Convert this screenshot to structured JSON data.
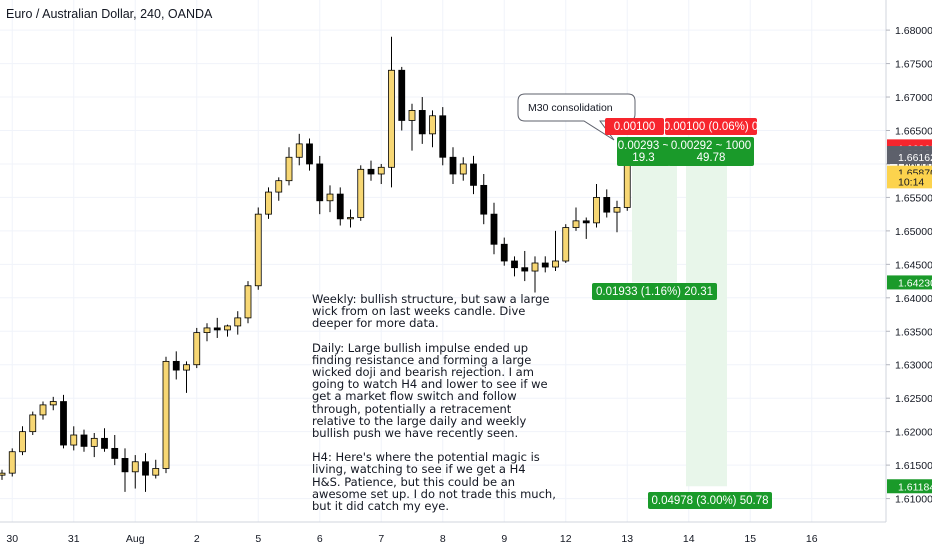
{
  "title": "Euro / Australian Dollar, 240, OANDA",
  "colors": {
    "bull_body": "#f7d774",
    "bear_body": "#000000",
    "wick": "#000000",
    "red_label": "#f7252d",
    "green_label": "#1a9a2a",
    "grey_label": "#5d606b",
    "yellow_label": "#fcd34d",
    "green_zone": "#e8f6ea",
    "grid": "#f0f3fa",
    "text": "#131722"
  },
  "chart_data": {
    "type": "candlestick",
    "symbol": "EURAUD",
    "interval": "240",
    "ylim": [
      1.6065,
      1.6845
    ],
    "y_ticks": [
      "1.68000",
      "1.67500",
      "1.67000",
      "1.66500",
      "1.66000",
      "1.65500",
      "1.65000",
      "1.64500",
      "1.64000",
      "1.63500",
      "1.63000",
      "1.62500",
      "1.62000",
      "1.61500",
      "1.61000"
    ],
    "x_ticks": [
      {
        "label": "30",
        "bar": 1
      },
      {
        "label": "31",
        "bar": 7
      },
      {
        "label": "Aug",
        "bar": 13
      },
      {
        "label": "2",
        "bar": 19
      },
      {
        "label": "5",
        "bar": 25
      },
      {
        "label": "6",
        "bar": 31
      },
      {
        "label": "7",
        "bar": 37
      },
      {
        "label": "8",
        "bar": 43
      },
      {
        "label": "9",
        "bar": 49
      },
      {
        "label": "12",
        "bar": 55
      },
      {
        "label": "13",
        "bar": 61
      },
      {
        "label": "14",
        "bar": 67
      },
      {
        "label": "15",
        "bar": 73
      },
      {
        "label": "16",
        "bar": 79
      }
    ],
    "candles": [
      [
        1.6135,
        1.6143,
        1.6128,
        1.6138
      ],
      [
        1.6138,
        1.6175,
        1.6133,
        1.617
      ],
      [
        1.617,
        1.6208,
        1.6165,
        1.62
      ],
      [
        1.62,
        1.623,
        1.6195,
        1.6225
      ],
      [
        1.6225,
        1.6245,
        1.6218,
        1.624
      ],
      [
        1.624,
        1.6252,
        1.6232,
        1.6245
      ],
      [
        1.6245,
        1.6255,
        1.6175,
        1.618
      ],
      [
        1.618,
        1.6208,
        1.6172,
        1.6195
      ],
      [
        1.6195,
        1.6203,
        1.617,
        1.6178
      ],
      [
        1.6178,
        1.6198,
        1.6162,
        1.619
      ],
      [
        1.619,
        1.6205,
        1.617,
        1.6175
      ],
      [
        1.6175,
        1.6195,
        1.615,
        1.616
      ],
      [
        1.616,
        1.6175,
        1.611,
        1.614
      ],
      [
        1.614,
        1.6165,
        1.6115,
        1.6155
      ],
      [
        1.6155,
        1.6168,
        1.611,
        1.6135
      ],
      [
        1.6135,
        1.6158,
        1.613,
        1.6145
      ],
      [
        1.6145,
        1.6312,
        1.6138,
        1.6305
      ],
      [
        1.6305,
        1.632,
        1.6278,
        1.6292
      ],
      [
        1.6292,
        1.6305,
        1.6258,
        1.63
      ],
      [
        1.63,
        1.6355,
        1.6295,
        1.6348
      ],
      [
        1.6348,
        1.6362,
        1.6335,
        1.6355
      ],
      [
        1.6355,
        1.637,
        1.634,
        1.6352
      ],
      [
        1.6352,
        1.636,
        1.6342,
        1.6358
      ],
      [
        1.6358,
        1.638,
        1.6345,
        1.637
      ],
      [
        1.637,
        1.6425,
        1.6362,
        1.6418
      ],
      [
        1.6418,
        1.6535,
        1.6412,
        1.6525
      ],
      [
        1.6525,
        1.6565,
        1.6518,
        1.6558
      ],
      [
        1.6558,
        1.658,
        1.6545,
        1.6575
      ],
      [
        1.6575,
        1.6625,
        1.6568,
        1.661
      ],
      [
        1.661,
        1.6645,
        1.6598,
        1.663
      ],
      [
        1.663,
        1.6638,
        1.659,
        1.66
      ],
      [
        1.66,
        1.6612,
        1.6525,
        1.6545
      ],
      [
        1.6545,
        1.6568,
        1.6528,
        1.6555
      ],
      [
        1.6555,
        1.6565,
        1.6508,
        1.6518
      ],
      [
        1.6518,
        1.6532,
        1.6505,
        1.652
      ],
      [
        1.652,
        1.6598,
        1.6515,
        1.6592
      ],
      [
        1.6592,
        1.6605,
        1.6575,
        1.6585
      ],
      [
        1.6585,
        1.66,
        1.657,
        1.6595
      ],
      [
        1.6595,
        1.679,
        1.6565,
        1.674
      ],
      [
        1.674,
        1.6745,
        1.665,
        1.6665
      ],
      [
        1.6665,
        1.669,
        1.662,
        1.668
      ],
      [
        1.668,
        1.67,
        1.663,
        1.6645
      ],
      [
        1.6645,
        1.668,
        1.6625,
        1.6672
      ],
      [
        1.6672,
        1.6685,
        1.6598,
        1.661
      ],
      [
        1.661,
        1.6625,
        1.657,
        1.6585
      ],
      [
        1.6585,
        1.661,
        1.6575,
        1.66
      ],
      [
        1.66,
        1.6612,
        1.6555,
        1.6568
      ],
      [
        1.6568,
        1.6585,
        1.651,
        1.6525
      ],
      [
        1.6525,
        1.6542,
        1.6465,
        1.648
      ],
      [
        1.648,
        1.649,
        1.6448,
        1.6455
      ],
      [
        1.6455,
        1.6462,
        1.6432,
        1.6445
      ],
      [
        1.6445,
        1.647,
        1.6425,
        1.644
      ],
      [
        1.644,
        1.6462,
        1.6408,
        1.6452
      ],
      [
        1.6452,
        1.6462,
        1.6438,
        1.6446
      ],
      [
        1.6446,
        1.65,
        1.644,
        1.6455
      ],
      [
        1.6455,
        1.651,
        1.6452,
        1.6505
      ],
      [
        1.6505,
        1.6535,
        1.65,
        1.6515
      ],
      [
        1.6515,
        1.652,
        1.6488,
        1.6512
      ],
      [
        1.6512,
        1.657,
        1.6505,
        1.655
      ],
      [
        1.655,
        1.6562,
        1.652,
        1.6528
      ],
      [
        1.6528,
        1.6545,
        1.6498,
        1.6535
      ],
      [
        1.6535,
        1.662,
        1.653,
        1.6612
      ],
      [
        1.6612,
        1.6618,
        1.6602,
        1.661
      ],
      [
        1.661,
        1.664,
        1.6605,
        1.6628
      ],
      [
        1.6628,
        1.6632,
        1.6618,
        1.662
      ],
      [
        1.662,
        1.6636,
        1.6612,
        1.663
      ]
    ],
    "annotation": "M30 consolidation",
    "positions": [
      {
        "type": "long",
        "stop_label": "0.00100 (0.06%) 0",
        "entry_label": "0.00293 ~",
        "entry_sub": "19.3",
        "target_label": "0.01933 (1.16%) 20.31"
      },
      {
        "type": "long",
        "stop_label": "0.00100 (0.06%) 0",
        "entry_label": "0.00292 ~ 1000",
        "entry_sub": "49.78",
        "target_label": "0.04978 (3.00%) 50.78"
      }
    ],
    "price_labels": [
      {
        "text": "1.66263",
        "price": 1.66263,
        "color": "red"
      },
      {
        "text": "1.66262",
        "price": 1.6623,
        "color": "red"
      },
      {
        "text": "1.66163",
        "price": 1.66163,
        "color": "grey"
      },
      {
        "text": "1.66162",
        "price": 1.66103,
        "color": "grey"
      },
      {
        "text": "1.65870",
        "price": 1.6587,
        "color": "yellow"
      },
      {
        "text": "10:14",
        "price": 1.6574,
        "color": "yellow"
      },
      {
        "text": "1.64230",
        "price": 1.6423,
        "color": "green"
      },
      {
        "text": "1.61184",
        "price": 1.61184,
        "color": "green"
      }
    ]
  },
  "note": {
    "weekly": "Weekly: bullish structure, but saw a large wick from on last weeks candle. Dive deeper for more data.",
    "daily": "Daily: Large bullish impulse ended up finding resistance and forming a large wicked doji and bearish rejection. I am going to watch H4 and lower to see if we get a market flow switch and follow through, potentially a retracement relative to the large daily and weekly bullish push we have recently seen.",
    "h4": "H4: Here's where the potential magic is living, watching to see if we get a H4 H&S. Patience, but this could be an awesome set up. I do not trade this much, but it did catch my eye."
  }
}
